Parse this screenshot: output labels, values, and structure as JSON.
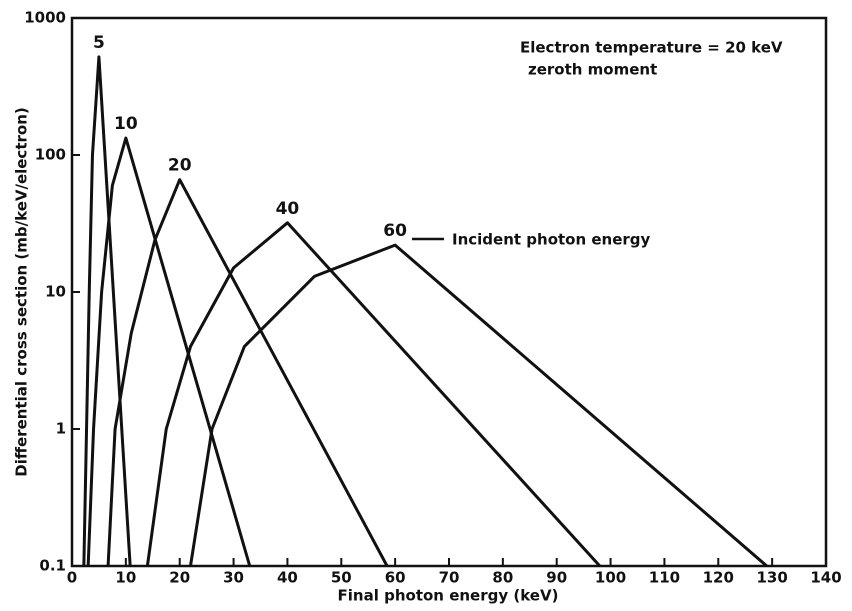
{
  "chart_data": {
    "type": "line",
    "annotations": [
      "Electron temperature = 20 keV",
      "zeroth moment",
      "Incident photon energy"
    ],
    "x_label": "Final photon energy (keV)",
    "y_label": "Differential cross section (mb/keV/electron)",
    "xlim": [
      0,
      140
    ],
    "ylim": [
      0.1,
      1000
    ],
    "log_y": true,
    "xticks": [
      0,
      10,
      20,
      30,
      40,
      50,
      60,
      70,
      80,
      90,
      100,
      110,
      120,
      130,
      140
    ],
    "yticks": [
      0.1,
      1,
      10,
      100,
      1000
    ],
    "series": [
      {
        "name": "5",
        "color": "#111111",
        "x": [
          2.2,
          2.7,
          3.2,
          3.8,
          5,
          10.8
        ],
        "values": [
          0.1,
          1,
          10,
          100,
          520,
          0.1
        ]
      },
      {
        "name": "10",
        "color": "#111111",
        "x": [
          3,
          4,
          5.5,
          7.5,
          10,
          33
        ],
        "values": [
          0.1,
          1,
          10,
          60,
          133,
          0.1
        ]
      },
      {
        "name": "20",
        "color": "#111111",
        "x": [
          6.7,
          8,
          11,
          15.4,
          20,
          58.5
        ],
        "values": [
          0.1,
          1,
          5,
          24,
          66,
          0.1
        ]
      },
      {
        "name": "40",
        "color": "#111111",
        "x": [
          14,
          17.5,
          22,
          30,
          40,
          98
        ],
        "values": [
          0.1,
          1,
          4,
          15,
          32,
          0.1
        ]
      },
      {
        "name": "60",
        "color": "#111111",
        "x": [
          22,
          26,
          32,
          45,
          60,
          129
        ],
        "values": [
          0.1,
          1,
          4,
          13,
          22,
          0.1
        ]
      }
    ]
  }
}
